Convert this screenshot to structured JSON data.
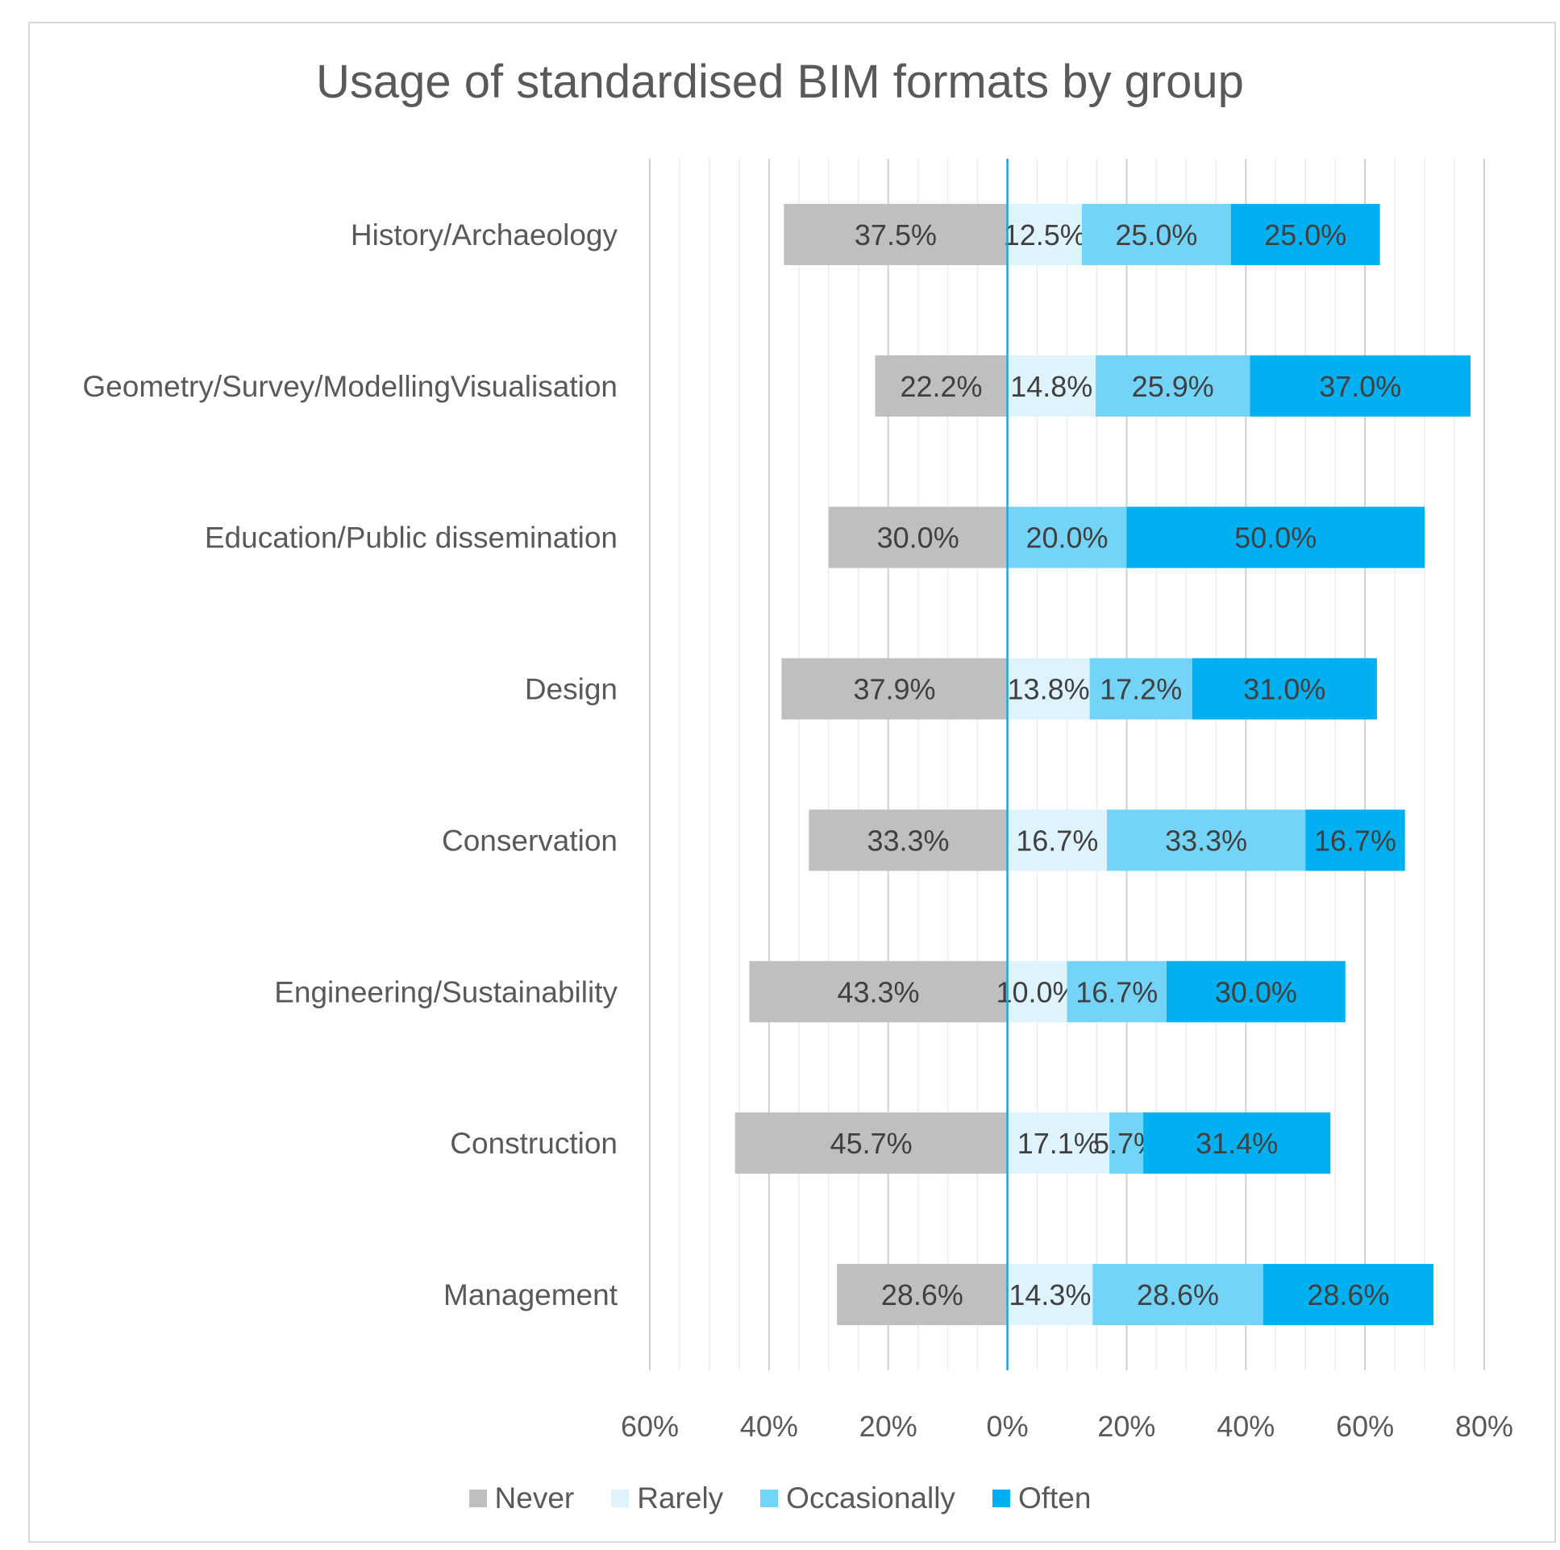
{
  "chart_data": {
    "type": "bar",
    "subtype": "diverging-stacked-horizontal",
    "title": "Usage of standardised BIM formats by group",
    "categories": [
      "History/Archaeology",
      "Geometry/Survey/ModellingVisualisation",
      "Education/Public dissemination",
      "Design",
      "Conservation",
      "Engineering/Sustainability",
      "Construction",
      "Management"
    ],
    "series": [
      {
        "name": "Never",
        "color": "#bfbfbf",
        "direction": "left",
        "values": [
          37.5,
          22.2,
          30.0,
          37.9,
          33.3,
          43.3,
          45.7,
          28.6
        ],
        "labels": [
          "37.5%",
          "22.2%",
          "30.0%",
          "37.9%",
          "33.3%",
          "43.3%",
          "45.7%",
          "28.6%"
        ]
      },
      {
        "name": "Rarely",
        "color": "#def3fc",
        "direction": "right",
        "values": [
          12.5,
          14.8,
          0,
          13.8,
          16.7,
          10.0,
          17.1,
          14.3
        ],
        "labels": [
          "12.5%",
          "14.8%",
          "",
          "13.8%",
          "16.7%",
          "10.0%",
          "17.1%",
          "14.3%"
        ]
      },
      {
        "name": "Occasionally",
        "color": "#74d4f7",
        "direction": "right",
        "values": [
          25.0,
          25.9,
          20.0,
          17.2,
          33.3,
          16.7,
          5.7,
          28.6
        ],
        "labels": [
          "25.0%",
          "25.9%",
          "20.0%",
          "17.2%",
          "33.3%",
          "16.7%",
          "5.7%",
          "28.6%"
        ]
      },
      {
        "name": "Often",
        "color": "#00b0f0",
        "direction": "right",
        "values": [
          25.0,
          37.0,
          50.0,
          31.0,
          16.7,
          30.0,
          31.4,
          28.6
        ],
        "labels": [
          "25.0%",
          "37.0%",
          "50.0%",
          "31.0%",
          "16.7%",
          "30.0%",
          "31.4%",
          "28.6%"
        ]
      }
    ],
    "x_ticks": [
      "60%",
      "40%",
      "20%",
      "0%",
      "20%",
      "40%",
      "60%",
      "80%"
    ],
    "xlim": [
      -60,
      80
    ],
    "grid": true,
    "legend": "bottom"
  }
}
